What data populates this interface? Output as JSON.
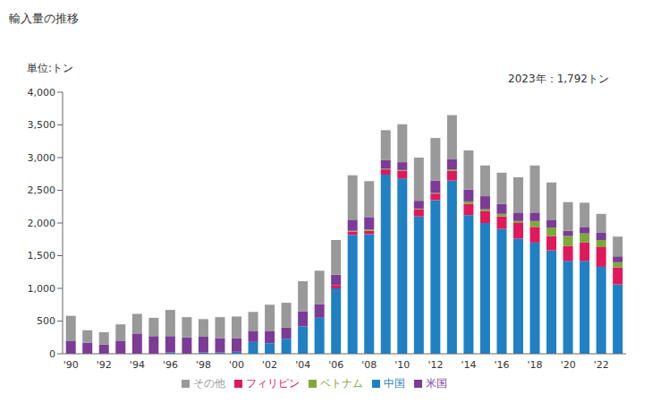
{
  "chart_data": {
    "type": "bar",
    "title": "輸入量の推移",
    "y_label": "単位:トン",
    "annotation": "2023年：1,792トン",
    "stacked": true,
    "grid": false,
    "legend": "bottom",
    "categories": [
      "'90",
      null,
      "'92",
      null,
      "'94",
      null,
      "'96",
      null,
      "'98",
      null,
      "'00",
      null,
      "'02",
      null,
      "'04",
      null,
      "'06",
      null,
      "'08",
      null,
      "'10",
      null,
      "'12",
      null,
      "'14",
      null,
      "'16",
      null,
      "'18",
      null,
      "'20",
      null,
      "'22",
      null
    ],
    "ylim": [
      0,
      4000
    ],
    "yticks": [
      0,
      500,
      {
        "value": 1000,
        "label": "1,000"
      },
      {
        "value": 1500,
        "label": "1,500"
      },
      {
        "value": 2000,
        "label": "2,000"
      },
      {
        "value": 2500,
        "label": "2,500"
      },
      {
        "value": 3000,
        "label": "3,000"
      },
      {
        "value": 3500,
        "label": "3,500"
      },
      {
        "value": 4000,
        "label": "4,000"
      }
    ],
    "series": [
      {
        "name": "中国",
        "color": "#1f80c4",
        "values": [
          0,
          0,
          0,
          0,
          0,
          0,
          20,
          0,
          20,
          20,
          30,
          180,
          160,
          230,
          420,
          550,
          1000,
          1820,
          1830,
          2740,
          2680,
          2100,
          2350,
          2650,
          2120,
          2000,
          1910,
          1760,
          1700,
          1580,
          1420,
          1420,
          1330,
          1060
        ]
      },
      {
        "name": "フィリピン",
        "color": "#e0185c",
        "values": [
          0,
          0,
          0,
          0,
          0,
          0,
          0,
          0,
          0,
          0,
          0,
          0,
          0,
          0,
          0,
          0,
          50,
          50,
          50,
          80,
          120,
          110,
          100,
          150,
          170,
          180,
          190,
          240,
          240,
          220,
          230,
          280,
          300,
          260
        ]
      },
      {
        "name": "ベトナム",
        "color": "#7fa83a",
        "values": [
          0,
          0,
          0,
          0,
          0,
          0,
          0,
          0,
          0,
          0,
          0,
          0,
          0,
          0,
          0,
          0,
          0,
          10,
          20,
          10,
          10,
          10,
          10,
          20,
          40,
          30,
          40,
          30,
          90,
          130,
          150,
          140,
          110,
          80
        ]
      },
      {
        "name": "米国",
        "color": "#7b3b96",
        "values": [
          200,
          170,
          140,
          200,
          310,
          270,
          250,
          250,
          240,
          220,
          210,
          170,
          190,
          170,
          230,
          210,
          160,
          170,
          190,
          130,
          120,
          120,
          190,
          160,
          180,
          200,
          150,
          130,
          130,
          120,
          80,
          100,
          110,
          90
        ]
      },
      {
        "name": "その他",
        "color": "#999999",
        "values": [
          380,
          190,
          190,
          250,
          300,
          280,
          400,
          310,
          270,
          320,
          330,
          290,
          400,
          380,
          460,
          510,
          530,
          680,
          550,
          460,
          580,
          660,
          650,
          670,
          600,
          470,
          480,
          540,
          720,
          570,
          440,
          370,
          290,
          302
        ]
      }
    ]
  }
}
